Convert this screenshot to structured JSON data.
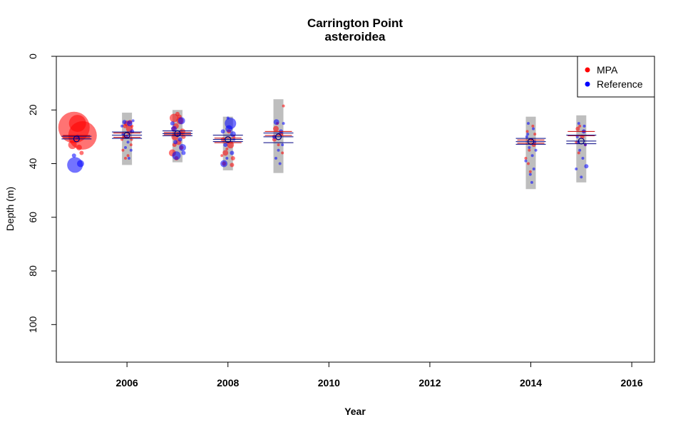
{
  "chart_data": {
    "type": "scatter",
    "title": "Carrington Point",
    "subtitle": "asteroidea",
    "xlabel": "Year",
    "ylabel": "Depth (m)",
    "xlim": [
      2004.6,
      2016.45
    ],
    "ylim": [
      0,
      114
    ],
    "y_reversed": true,
    "x_ticks": [
      2006,
      2008,
      2010,
      2012,
      2014,
      2016
    ],
    "y_ticks": [
      0,
      20,
      40,
      60,
      80,
      100
    ],
    "grid": false,
    "legend": {
      "placement": "top-right",
      "entries": [
        {
          "name": "MPA",
          "color": "#ff0000"
        },
        {
          "name": "Reference",
          "color": "#0000ff"
        }
      ]
    },
    "depth_ranges": [
      {
        "year": 2006,
        "min": 21,
        "max": 40.5
      },
      {
        "year": 2007,
        "min": 20,
        "max": 39.5
      },
      {
        "year": 2008,
        "min": 22.5,
        "max": 42.5
      },
      {
        "year": 2009,
        "min": 16,
        "max": 43.5
      },
      {
        "year": 2014,
        "min": 22.5,
        "max": 49.5
      },
      {
        "year": 2015,
        "min": 22,
        "max": 47
      }
    ],
    "mean_depth_lines": [
      {
        "year": 2005,
        "mpa": [
          29.5,
          30.3
        ],
        "reference": [
          29.8,
          30.8
        ]
      },
      {
        "year": 2006,
        "mpa": [
          28.6,
          30.2
        ],
        "reference": [
          28.2,
          29.4,
          30.6
        ]
      },
      {
        "year": 2007,
        "mpa": [
          28.4,
          29.2
        ],
        "reference": [
          27.8,
          28.8,
          29.6
        ]
      },
      {
        "year": 2008,
        "mpa": [
          30.5,
          32.2
        ],
        "reference": [
          29.4,
          31.0,
          31.8
        ]
      },
      {
        "year": 2009,
        "mpa": [
          28.0,
          29.5
        ],
        "reference": [
          28.6,
          30.0,
          32.2
        ]
      },
      {
        "year": 2014,
        "mpa": [
          31.2,
          32.4
        ],
        "reference": [
          30.6,
          31.8,
          32.8
        ]
      },
      {
        "year": 2015,
        "mpa": [
          28.0,
          29.6
        ],
        "reference": [
          29.4,
          31.6,
          32.6
        ]
      }
    ],
    "series": [
      {
        "name": "MPA",
        "color": "#ff0000",
        "points": [
          {
            "x": 2004.95,
            "y": 26.5,
            "size": 22
          },
          {
            "x": 2005.12,
            "y": 29.5,
            "size": 20
          },
          {
            "x": 2005.02,
            "y": 25,
            "size": 12
          },
          {
            "x": 2004.92,
            "y": 33,
            "size": 6
          },
          {
            "x": 2005.05,
            "y": 34,
            "size": 4
          },
          {
            "x": 2005.1,
            "y": 36,
            "size": 3
          },
          {
            "x": 2006,
            "y": 25,
            "size": 4
          },
          {
            "x": 2006.05,
            "y": 27,
            "size": 5
          },
          {
            "x": 2005.95,
            "y": 30,
            "size": 3
          },
          {
            "x": 2006.08,
            "y": 33,
            "size": 2
          },
          {
            "x": 2005.92,
            "y": 35,
            "size": 2
          },
          {
            "x": 2006.02,
            "y": 37,
            "size": 2
          },
          {
            "x": 2006.06,
            "y": 24.5,
            "size": 3
          },
          {
            "x": 2005.97,
            "y": 38,
            "size": 2
          },
          {
            "x": 2006.1,
            "y": 26,
            "size": 2
          },
          {
            "x": 2005.9,
            "y": 31,
            "size": 2
          },
          {
            "x": 2006.04,
            "y": 29,
            "size": 2
          },
          {
            "x": 2005.96,
            "y": 26,
            "size": 3
          },
          {
            "x": 2006.09,
            "y": 31,
            "size": 2
          },
          {
            "x": 2006.93,
            "y": 23,
            "size": 6
          },
          {
            "x": 2007.05,
            "y": 24,
            "size": 5
          },
          {
            "x": 2006.97,
            "y": 26,
            "size": 4
          },
          {
            "x": 2007.1,
            "y": 28,
            "size": 4
          },
          {
            "x": 2006.95,
            "y": 30,
            "size": 5
          },
          {
            "x": 2007.02,
            "y": 32,
            "size": 4
          },
          {
            "x": 2006.9,
            "y": 36,
            "size": 5
          },
          {
            "x": 2007.08,
            "y": 34,
            "size": 3
          },
          {
            "x": 2007,
            "y": 21.5,
            "size": 3
          },
          {
            "x": 2007.12,
            "y": 30,
            "size": 3
          },
          {
            "x": 2006.98,
            "y": 38,
            "size": 3
          },
          {
            "x": 2006.92,
            "y": 27,
            "size": 3
          },
          {
            "x": 2007.04,
            "y": 22.5,
            "size": 3
          },
          {
            "x": 2006.94,
            "y": 33,
            "size": 3
          },
          {
            "x": 2007.9,
            "y": 31,
            "size": 3
          },
          {
            "x": 2008.05,
            "y": 33,
            "size": 5
          },
          {
            "x": 2007.95,
            "y": 36,
            "size": 4
          },
          {
            "x": 2008.1,
            "y": 38,
            "size": 3
          },
          {
            "x": 2007.92,
            "y": 40,
            "size": 3
          },
          {
            "x": 2008.02,
            "y": 28,
            "size": 3
          },
          {
            "x": 2008.08,
            "y": 40.5,
            "size": 3
          },
          {
            "x": 2007.98,
            "y": 34.5,
            "size": 2
          },
          {
            "x": 2008.12,
            "y": 30,
            "size": 2
          },
          {
            "x": 2007.88,
            "y": 37,
            "size": 2
          },
          {
            "x": 2008.95,
            "y": 27,
            "size": 4
          },
          {
            "x": 2009.05,
            "y": 29,
            "size": 3
          },
          {
            "x": 2008.92,
            "y": 31,
            "size": 3
          },
          {
            "x": 2009.1,
            "y": 18.5,
            "size": 2
          },
          {
            "x": 2009,
            "y": 33,
            "size": 2
          },
          {
            "x": 2008.98,
            "y": 25,
            "size": 2
          },
          {
            "x": 2009.08,
            "y": 36,
            "size": 2
          },
          {
            "x": 2013.93,
            "y": 28,
            "size": 2
          },
          {
            "x": 2014.02,
            "y": 31,
            "size": 2
          },
          {
            "x": 2013.97,
            "y": 35,
            "size": 2
          },
          {
            "x": 2014.06,
            "y": 33,
            "size": 3
          },
          {
            "x": 2013.9,
            "y": 38,
            "size": 2
          },
          {
            "x": 2014.04,
            "y": 26,
            "size": 2
          },
          {
            "x": 2013.95,
            "y": 40,
            "size": 2
          },
          {
            "x": 2014.08,
            "y": 29,
            "size": 2
          },
          {
            "x": 2013.99,
            "y": 43,
            "size": 2
          },
          {
            "x": 2014.93,
            "y": 27,
            "size": 3
          },
          {
            "x": 2015.02,
            "y": 30,
            "size": 3
          },
          {
            "x": 2014.97,
            "y": 26,
            "size": 2
          },
          {
            "x": 2015.08,
            "y": 33,
            "size": 2
          },
          {
            "x": 2014.95,
            "y": 36,
            "size": 2
          },
          {
            "x": 2015.05,
            "y": 28,
            "size": 2
          },
          {
            "x": 2014.9,
            "y": 32,
            "size": 2
          }
        ]
      },
      {
        "name": "Reference",
        "color": "#0000ff",
        "points": [
          {
            "x": 2004.97,
            "y": 40.5,
            "size": 11
          },
          {
            "x": 2005.08,
            "y": 40,
            "size": 5
          },
          {
            "x": 2004.95,
            "y": 37,
            "size": 3
          },
          {
            "x": 2005.02,
            "y": 30,
            "size": 3
          },
          {
            "x": 2006.05,
            "y": 25,
            "size": 4
          },
          {
            "x": 2005.95,
            "y": 24.5,
            "size": 3
          },
          {
            "x": 2006.1,
            "y": 28,
            "size": 3
          },
          {
            "x": 2005.92,
            "y": 29,
            "size": 2
          },
          {
            "x": 2006.02,
            "y": 32,
            "size": 2
          },
          {
            "x": 2006.08,
            "y": 35,
            "size": 2
          },
          {
            "x": 2005.97,
            "y": 34,
            "size": 2
          },
          {
            "x": 2006.04,
            "y": 38,
            "size": 2
          },
          {
            "x": 2006.12,
            "y": 24,
            "size": 2
          },
          {
            "x": 2005.9,
            "y": 26,
            "size": 2
          },
          {
            "x": 2006,
            "y": 30,
            "size": 2
          },
          {
            "x": 2007.08,
            "y": 24,
            "size": 5
          },
          {
            "x": 2006.98,
            "y": 37,
            "size": 6
          },
          {
            "x": 2007.1,
            "y": 34,
            "size": 5
          },
          {
            "x": 2006.93,
            "y": 27,
            "size": 4
          },
          {
            "x": 2007.03,
            "y": 29,
            "size": 3
          },
          {
            "x": 2006.96,
            "y": 32,
            "size": 3
          },
          {
            "x": 2007.12,
            "y": 36,
            "size": 3
          },
          {
            "x": 2006.9,
            "y": 25,
            "size": 3
          },
          {
            "x": 2007.05,
            "y": 31,
            "size": 3
          },
          {
            "x": 2008.05,
            "y": 25,
            "size": 8
          },
          {
            "x": 2008.02,
            "y": 27,
            "size": 5
          },
          {
            "x": 2007.92,
            "y": 40,
            "size": 5
          },
          {
            "x": 2008.1,
            "y": 29,
            "size": 4
          },
          {
            "x": 2007.95,
            "y": 33,
            "size": 3
          },
          {
            "x": 2008.08,
            "y": 36,
            "size": 3
          },
          {
            "x": 2007.9,
            "y": 28,
            "size": 3
          },
          {
            "x": 2007.98,
            "y": 38,
            "size": 2
          },
          {
            "x": 2008.12,
            "y": 31,
            "size": 2
          },
          {
            "x": 2008,
            "y": 23,
            "size": 2
          },
          {
            "x": 2008.96,
            "y": 24.5,
            "size": 4
          },
          {
            "x": 2009.05,
            "y": 28,
            "size": 3
          },
          {
            "x": 2008.92,
            "y": 30,
            "size": 3
          },
          {
            "x": 2009.08,
            "y": 33,
            "size": 2
          },
          {
            "x": 2009,
            "y": 35,
            "size": 2
          },
          {
            "x": 2009.1,
            "y": 25,
            "size": 2
          },
          {
            "x": 2008.95,
            "y": 38,
            "size": 2
          },
          {
            "x": 2009.03,
            "y": 40,
            "size": 2
          },
          {
            "x": 2013.95,
            "y": 25,
            "size": 2
          },
          {
            "x": 2014.05,
            "y": 27,
            "size": 2
          },
          {
            "x": 2013.92,
            "y": 30,
            "size": 2
          },
          {
            "x": 2014.08,
            "y": 32,
            "size": 2
          },
          {
            "x": 2013.97,
            "y": 34,
            "size": 2
          },
          {
            "x": 2014.03,
            "y": 37,
            "size": 2
          },
          {
            "x": 2013.9,
            "y": 39,
            "size": 2
          },
          {
            "x": 2014.06,
            "y": 42,
            "size": 2
          },
          {
            "x": 2013.99,
            "y": 44,
            "size": 2
          },
          {
            "x": 2014.02,
            "y": 47,
            "size": 2
          },
          {
            "x": 2013.94,
            "y": 29,
            "size": 2
          },
          {
            "x": 2014.1,
            "y": 35,
            "size": 2
          },
          {
            "x": 2014.95,
            "y": 25,
            "size": 2
          },
          {
            "x": 2015.05,
            "y": 28,
            "size": 3
          },
          {
            "x": 2014.92,
            "y": 30,
            "size": 2
          },
          {
            "x": 2015.08,
            "y": 33,
            "size": 2
          },
          {
            "x": 2014.97,
            "y": 35,
            "size": 2
          },
          {
            "x": 2015.03,
            "y": 38,
            "size": 2
          },
          {
            "x": 2015.1,
            "y": 41,
            "size": 3
          },
          {
            "x": 2014.9,
            "y": 42,
            "size": 2
          },
          {
            "x": 2015,
            "y": 45,
            "size": 2
          },
          {
            "x": 2015.06,
            "y": 26,
            "size": 2
          },
          {
            "x": 2014.94,
            "y": 32,
            "size": 2
          }
        ]
      }
    ]
  }
}
